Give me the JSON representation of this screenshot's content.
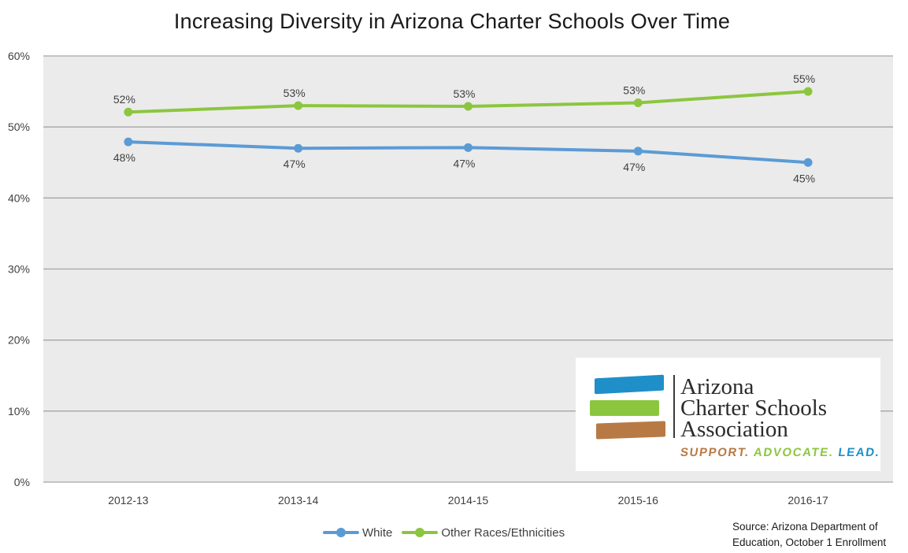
{
  "chart_data": {
    "type": "line",
    "title": "Increasing Diversity in Arizona Charter Schools Over Time",
    "categories": [
      "2012-13",
      "2013-14",
      "2014-15",
      "2015-16",
      "2016-17"
    ],
    "ylim": [
      0,
      60
    ],
    "yticks": [
      0,
      10,
      20,
      30,
      40,
      50,
      60
    ],
    "ytick_labels": [
      "0%",
      "10%",
      "20%",
      "30%",
      "40%",
      "50%",
      "60%"
    ],
    "grid": true,
    "legend_position": "bottom",
    "series": [
      {
        "name": "White",
        "color": "#5B9BD5",
        "values": [
          47.9,
          47.0,
          47.1,
          46.6,
          45.0
        ],
        "labels": [
          "48%",
          "47%",
          "47%",
          "47%",
          "45%"
        ],
        "label_position": "below"
      },
      {
        "name": "Other Races/Ethnicities",
        "color": "#8CC63F",
        "values": [
          52.1,
          53.0,
          52.9,
          53.4,
          55.0
        ],
        "labels": [
          "52%",
          "53%",
          "53%",
          "53%",
          "55%"
        ],
        "label_position": "above"
      }
    ]
  },
  "source_note": {
    "line1": "Source: Arizona Department of",
    "line2": "Education, October 1 Enrollment"
  },
  "logo": {
    "words": [
      "Arizona",
      "Charter Schools",
      "Association"
    ],
    "tagline": [
      "SUPPORT.",
      "ADVOCATE.",
      "LEAD."
    ],
    "tagline_colors": [
      "#B87A45",
      "#8CC63F",
      "#1E8FC8"
    ],
    "bar_colors": [
      "#1E8FC8",
      "#8CC63F",
      "#B87A45"
    ]
  },
  "colors": {
    "plot_background": "#EBEBEB",
    "gridline": "#A6A6A6"
  }
}
